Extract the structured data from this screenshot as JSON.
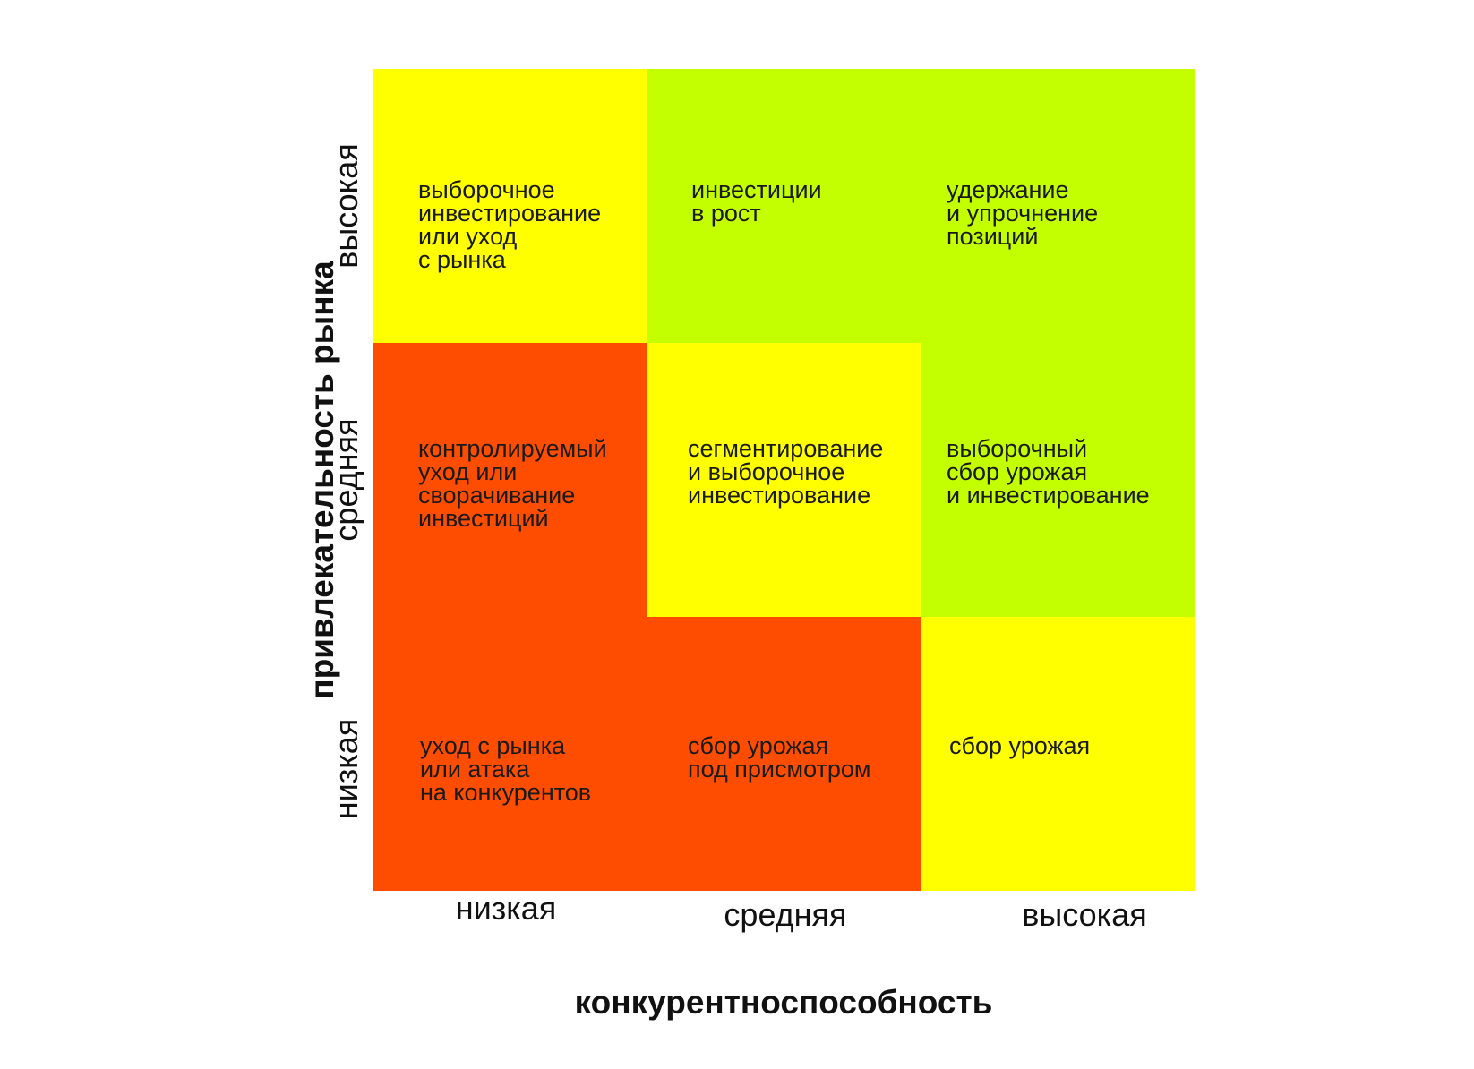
{
  "axes": {
    "x_title": "конкурентноспособность",
    "y_title": "привлекательность рынка",
    "x_levels": [
      "низкая",
      "средняя",
      "высокая"
    ],
    "y_levels": [
      "высокая",
      "средняя",
      "низкая"
    ]
  },
  "colors": {
    "red": "#ff4d00",
    "yellow": "#ffff00",
    "green": "#c4ff00"
  },
  "cells": [
    {
      "row": 0,
      "col": 0,
      "color": "yellow",
      "text": "выборочное\nинвестирование\nили уход\nс рынка"
    },
    {
      "row": 0,
      "col": 1,
      "color": "green",
      "text": "инвестиции\nв рост"
    },
    {
      "row": 0,
      "col": 2,
      "color": "green",
      "text": "удержание\nи упрочнение\nпозиций"
    },
    {
      "row": 1,
      "col": 0,
      "color": "red",
      "text": "контролируемый\nуход или\nсворачивание\nинвестиций"
    },
    {
      "row": 1,
      "col": 1,
      "color": "yellow",
      "text": "сегментирование\nи выборочное\nинвестирование"
    },
    {
      "row": 1,
      "col": 2,
      "color": "green",
      "text": "выборочный\nсбор урожая\nи инвестирование"
    },
    {
      "row": 2,
      "col": 0,
      "color": "red",
      "text": "уход с рынка\nили атака\nна конкурентов"
    },
    {
      "row": 2,
      "col": 1,
      "color": "red",
      "text": "сбор урожая\nпод присмотром"
    },
    {
      "row": 2,
      "col": 2,
      "color": "yellow",
      "text": "сбор урожая"
    }
  ]
}
